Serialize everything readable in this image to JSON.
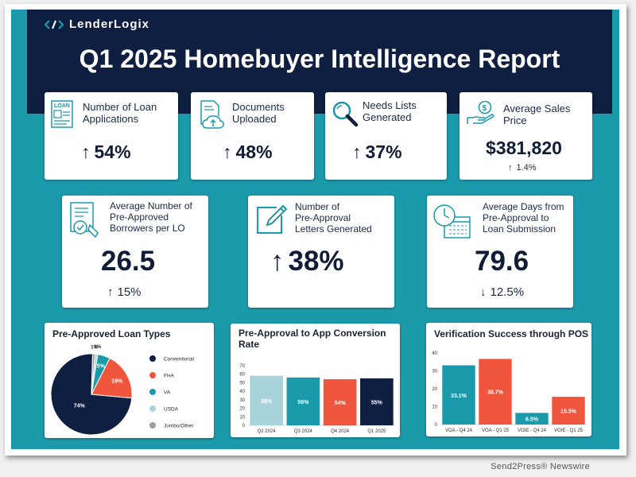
{
  "logo": {
    "text": "LenderLogix"
  },
  "report": {
    "title": "Q1 2025 Homebuyer Intelligence Report"
  },
  "stats_row1": [
    {
      "label": "Number of Loan\nApplications",
      "value": "54%",
      "direction": "up",
      "icon": "loan-application-icon"
    },
    {
      "label": "Documents\nUploaded",
      "value": "48%",
      "direction": "up",
      "icon": "document-upload-icon"
    },
    {
      "label": "Needs Lists\nGenerated",
      "value": "37%",
      "direction": "up",
      "icon": "magnifier-icon"
    },
    {
      "label": "Average Sales\nPrice",
      "value": "$381,820",
      "change": "1.4%",
      "change_direction": "up",
      "icon": "hand-money-icon"
    }
  ],
  "stats_row2": [
    {
      "label": "Average Number of\nPre-Approved\nBorrowers per LO",
      "value": "26.5",
      "change": "15%",
      "change_direction": "up",
      "icon": "approved-document-icon"
    },
    {
      "label": "Number of\nPre-Approval\nLetters Generated",
      "value": "38%",
      "direction": "up",
      "icon": "pen-edit-icon"
    },
    {
      "label": "Average Days from\nPre-Approval to\nLoan Submission",
      "value": "79.6",
      "change": "12.5%",
      "change_direction": "down",
      "icon": "clock-calendar-icon"
    }
  ],
  "colors": {
    "navy": "#0f1f41",
    "teal": "#1b9aab",
    "orange": "#f0553d",
    "light_blue": "#a8d2dc",
    "gray": "#9e9e9e"
  },
  "chart_data": [
    {
      "type": "pie",
      "title": "Pre-Approved Loan Types",
      "slices": [
        {
          "name": "Conventional",
          "value": 74,
          "label": "74%",
          "color": "#0f1f41"
        },
        {
          "name": "FHA",
          "value": 19,
          "label": "19%",
          "color": "#f0553d"
        },
        {
          "name": "VA",
          "value": 5,
          "label": "5%",
          "color": "#1b9aab"
        },
        {
          "name": "USDA",
          "value": 1,
          "label": "1%",
          "color": "#a8d2dc"
        },
        {
          "name": "Jumbo/Other",
          "value": 1,
          "label": "1%",
          "color": "#9e9e9e"
        }
      ],
      "legend_position": "right"
    },
    {
      "type": "bar",
      "title": "Pre-Approval to App Conversion\nRate",
      "categories": [
        "Q2 2024",
        "Q3 2024",
        "Q4 2024",
        "Q1 2025"
      ],
      "values": [
        58,
        56,
        54,
        55
      ],
      "labels": [
        "58%",
        "56%",
        "54%",
        "55%"
      ],
      "colors": [
        "#a8d2dc",
        "#1b9aab",
        "#f0553d",
        "#0f1f41"
      ],
      "yticks": [
        0,
        10,
        20,
        30,
        40,
        50,
        60,
        70
      ],
      "ylim": [
        0,
        80
      ]
    },
    {
      "type": "bar",
      "title": "Verification Success through POS",
      "categories": [
        "VOA - Q4 24",
        "VOA - Q1 25",
        "VOIE - Q4 24",
        "VOIE - Q1 25"
      ],
      "values": [
        33.1,
        36.7,
        6.5,
        15.5
      ],
      "labels": [
        "33.1%",
        "36.7%",
        "6.5%",
        "15.5%"
      ],
      "colors": [
        "#1b9aab",
        "#f0553d",
        "#1b9aab",
        "#f0553d"
      ],
      "yticks": [
        0,
        10,
        20,
        30,
        40
      ],
      "ylim": [
        0,
        40
      ]
    }
  ],
  "footer": {
    "text": "Send2Press® Newswire"
  }
}
